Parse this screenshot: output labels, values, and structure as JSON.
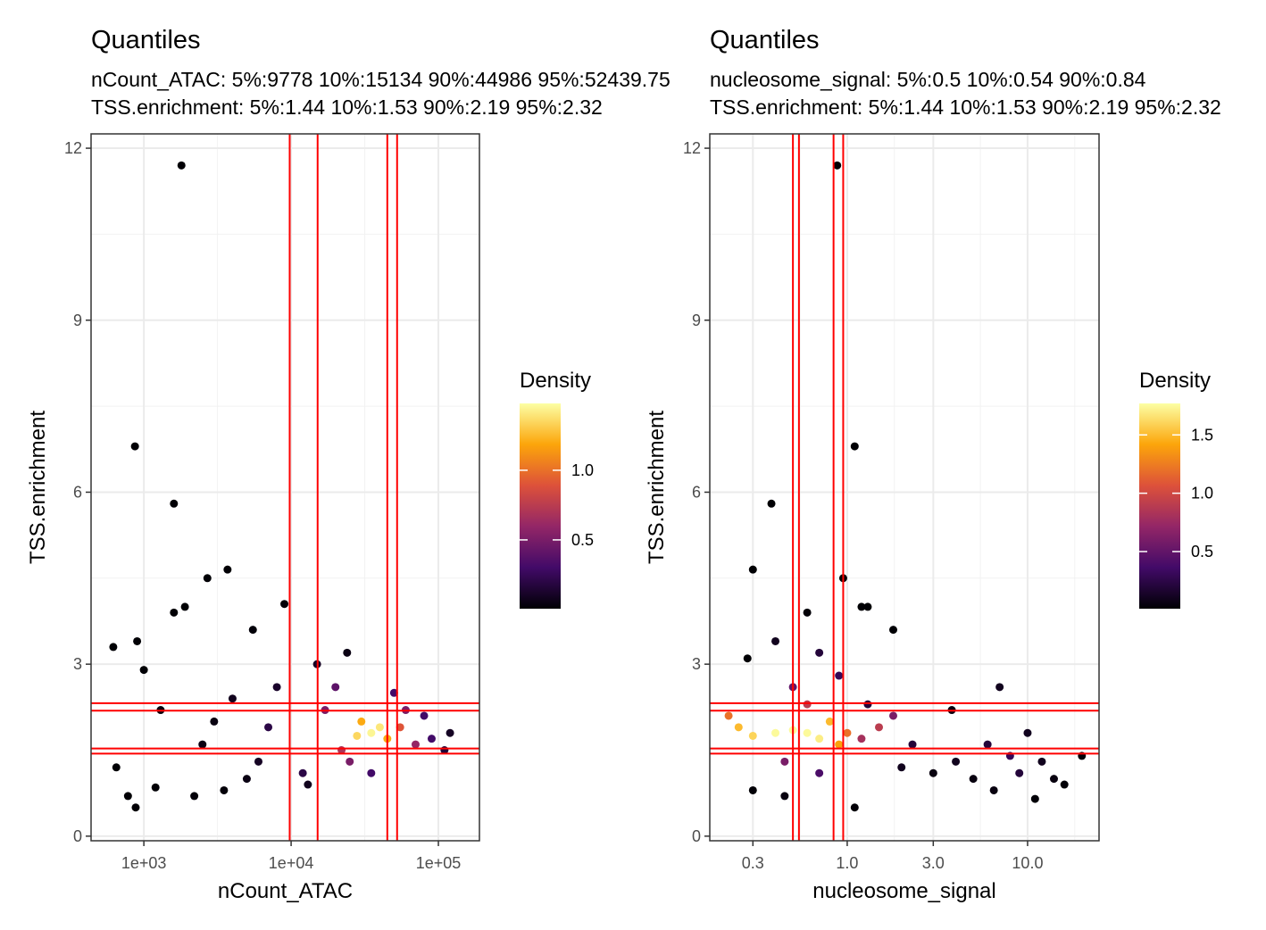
{
  "chart_data": [
    {
      "type": "scatter",
      "title": "Quantiles",
      "subtitle": [
        "nCount_ATAC: 5%:9778 10%:15134 90%:44986 95%:52439.75",
        "TSS.enrichment: 5%:1.44 10%:1.53 90%:2.19 95%:2.32"
      ],
      "xlabel": "nCount_ATAC",
      "ylabel": "TSS.enrichment",
      "xlog": true,
      "xlim": [
        438,
        190000
      ],
      "xticks": [
        {
          "value": 1000,
          "label": "1e+03"
        },
        {
          "value": 10000,
          "label": "1e+04"
        },
        {
          "value": 100000,
          "label": "1e+05"
        }
      ],
      "ylim": [
        -0.08,
        12.25
      ],
      "yticks": [
        0,
        3,
        6,
        9,
        12
      ],
      "grid": true,
      "x": [
        1800,
        870,
        1600,
        3700,
        2700,
        1900,
        9000,
        620,
        900,
        1600,
        5500,
        650,
        780,
        880,
        1200,
        2200,
        3500,
        1000,
        1300,
        2500,
        4000,
        6000,
        8000,
        12000,
        15000,
        24000,
        13000,
        5000,
        3000,
        7000,
        120000,
        110000,
        90000,
        20000,
        17000,
        35000,
        50000,
        60000,
        80000,
        70000,
        25000,
        22000,
        55000,
        30000,
        45000,
        28000,
        40000,
        35000
      ],
      "y": [
        11.7,
        6.8,
        5.8,
        4.65,
        4.5,
        4.0,
        4.05,
        3.3,
        3.4,
        3.9,
        3.6,
        1.2,
        0.7,
        0.5,
        0.85,
        0.7,
        0.8,
        2.9,
        2.2,
        1.6,
        2.4,
        1.3,
        2.6,
        1.1,
        3.0,
        3.2,
        0.9,
        1.0,
        2.0,
        1.9,
        1.8,
        1.5,
        1.7,
        2.6,
        2.2,
        1.1,
        2.5,
        2.2,
        2.1,
        1.6,
        1.3,
        1.5,
        1.9,
        2.0,
        1.7,
        1.75,
        1.9,
        1.8
      ],
      "density": [
        0.01,
        0.01,
        0.01,
        0.01,
        0.01,
        0.01,
        0.02,
        0.01,
        0.01,
        0.01,
        0.02,
        0.01,
        0.01,
        0.01,
        0.01,
        0.02,
        0.02,
        0.01,
        0.03,
        0.05,
        0.08,
        0.1,
        0.12,
        0.2,
        0.1,
        0.05,
        0.08,
        0.05,
        0.04,
        0.2,
        0.1,
        0.15,
        0.3,
        0.4,
        0.5,
        0.3,
        0.3,
        0.5,
        0.3,
        0.6,
        0.5,
        0.7,
        0.9,
        1.2,
        1.2,
        1.35,
        1.4,
        1.45
      ],
      "vlines": [
        9778,
        15134,
        44986,
        52439.75
      ],
      "hlines": [
        1.44,
        1.53,
        2.19,
        2.32
      ],
      "line_color": "#ff0000",
      "legend_title": "Density",
      "colorbar_lim": [
        0.006,
        1.48
      ],
      "colorbar_ticks": [
        0.5,
        1.0
      ],
      "colormap": [
        "#000004",
        "#420a68",
        "#932667",
        "#dd513a",
        "#fca50a",
        "#fcffa4"
      ]
    },
    {
      "type": "scatter",
      "title": "Quantiles",
      "subtitle": [
        "nucleosome_signal: 5%:0.5 10%:0.54 90%:0.84",
        "TSS.enrichment: 5%:1.44 10%:1.53 90%:2.19 95%:2.32"
      ],
      "xlabel": "nucleosome_signal",
      "ylabel": "TSS.enrichment",
      "xlog": true,
      "xlim": [
        0.173,
        24.9
      ],
      "xticks": [
        0.3,
        {
          "value": 1,
          "label": "1.0"
        },
        {
          "value": 3,
          "label": "3.0"
        },
        {
          "value": 10,
          "label": "10.0"
        }
      ],
      "ylim": [
        -0.08,
        12.25
      ],
      "yticks": [
        0,
        3,
        6,
        9,
        12
      ],
      "grid": true,
      "x": [
        0.88,
        1.1,
        0.38,
        0.3,
        0.95,
        1.2,
        1.3,
        0.6,
        1.8,
        0.28,
        0.3,
        0.45,
        1.1,
        16.0,
        20.0,
        11.0,
        14.0,
        3.0,
        5.0,
        6.5,
        3.8,
        0.4,
        0.7,
        2.0,
        7.0,
        9.0,
        12.0,
        10.0,
        4.0,
        8.0,
        6.0,
        2.3,
        0.9,
        1.3,
        0.7,
        0.5,
        1.8,
        0.45,
        0.6,
        1.2,
        1.5,
        0.22,
        1.0,
        0.9,
        0.25,
        0.8,
        0.3,
        0.7,
        0.4,
        0.5,
        0.6
      ],
      "y": [
        11.7,
        6.8,
        5.8,
        4.65,
        4.5,
        4.0,
        4.0,
        3.9,
        3.6,
        3.1,
        0.8,
        0.7,
        0.5,
        0.9,
        1.4,
        0.65,
        1.0,
        1.1,
        1.0,
        0.8,
        2.2,
        3.4,
        3.2,
        1.2,
        2.6,
        1.1,
        1.3,
        1.8,
        1.3,
        1.4,
        1.6,
        1.6,
        2.8,
        2.3,
        1.1,
        2.6,
        2.1,
        1.3,
        2.3,
        1.7,
        1.9,
        2.1,
        1.8,
        1.6,
        1.9,
        2.0,
        1.75,
        1.7,
        1.8,
        1.85,
        1.8
      ],
      "density": [
        0.01,
        0.01,
        0.01,
        0.01,
        0.01,
        0.01,
        0.01,
        0.02,
        0.01,
        0.01,
        0.02,
        0.05,
        0.02,
        0.02,
        0.02,
        0.02,
        0.05,
        0.05,
        0.05,
        0.05,
        0.05,
        0.1,
        0.2,
        0.1,
        0.1,
        0.2,
        0.1,
        0.1,
        0.1,
        0.3,
        0.2,
        0.2,
        0.3,
        0.2,
        0.4,
        0.5,
        0.6,
        0.6,
        0.9,
        0.8,
        0.9,
        1.2,
        1.2,
        1.4,
        1.5,
        1.5,
        1.6,
        1.7,
        1.75,
        1.75,
        1.75
      ],
      "vlines": [
        0.5,
        0.54,
        0.84,
        0.95
      ],
      "hlines": [
        1.44,
        1.53,
        2.19,
        2.32
      ],
      "line_color": "#ff0000",
      "legend_title": "Density",
      "colorbar_lim": [
        0.01,
        1.77
      ],
      "colorbar_ticks": [
        0.5,
        1.0,
        1.5
      ],
      "colormap": [
        "#000004",
        "#420a68",
        "#932667",
        "#dd513a",
        "#fca50a",
        "#fcffa4"
      ]
    }
  ]
}
